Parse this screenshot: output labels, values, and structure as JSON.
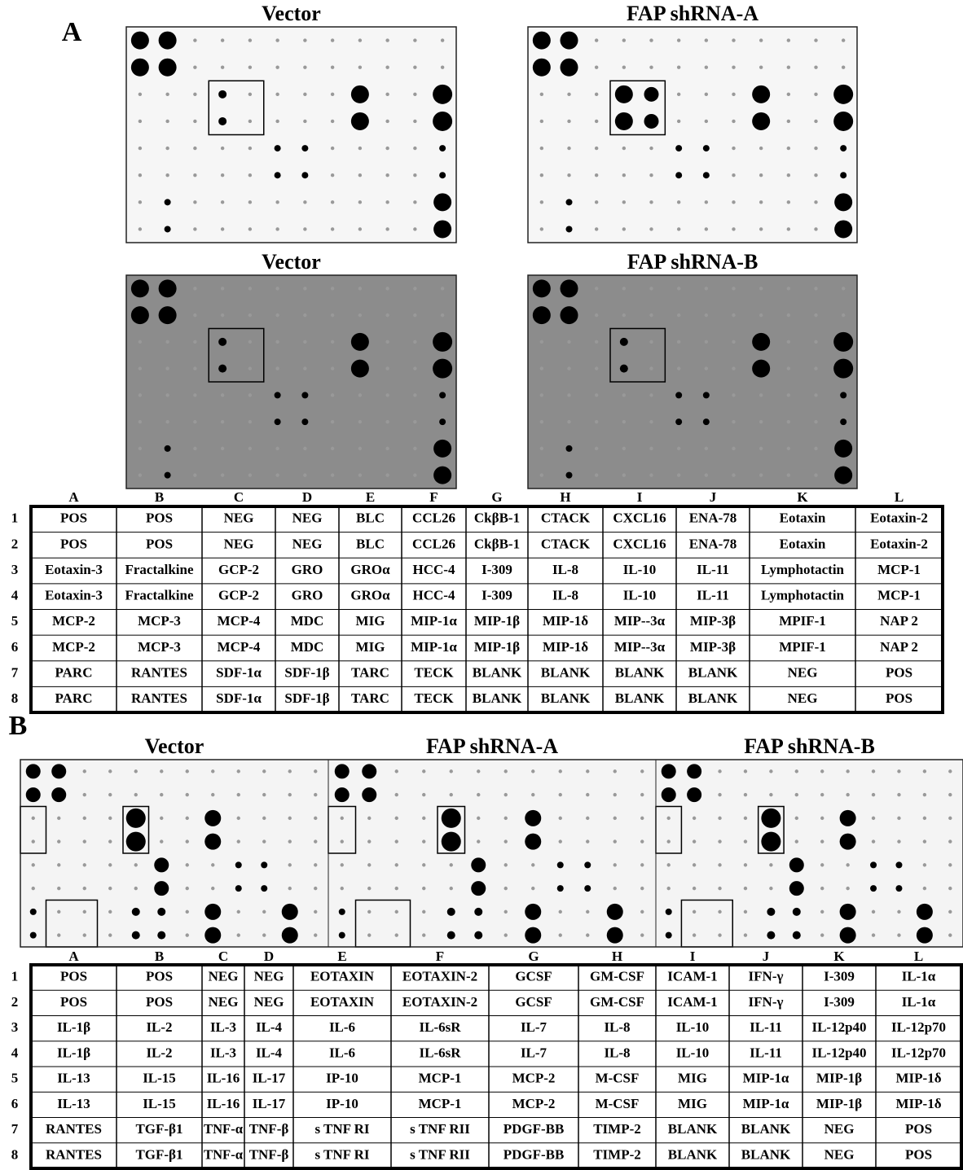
{
  "panel_a": {
    "label": "A",
    "blots": [
      "Vector",
      "FAP shRNA-A",
      "Vector",
      "FAP shRNA-B"
    ],
    "table": {
      "columns": [
        "A",
        "B",
        "C",
        "D",
        "E",
        "F",
        "G",
        "H",
        "I",
        "J",
        "K",
        "L"
      ],
      "row_numbers": [
        "1",
        "2",
        "3",
        "4",
        "5",
        "6",
        "7",
        "8"
      ],
      "rows": [
        [
          "POS",
          "POS",
          "NEG",
          "NEG",
          "BLC",
          "CCL26",
          "CkβB-1",
          "CTACK",
          "CXCL16",
          "ENA-78",
          "Eotaxin",
          "Eotaxin-2"
        ],
        [
          "POS",
          "POS",
          "NEG",
          "NEG",
          "BLC",
          "CCL26",
          "CkβB-1",
          "CTACK",
          "CXCL16",
          "ENA-78",
          "Eotaxin",
          "Eotaxin-2"
        ],
        [
          "Eotaxin-3",
          "Fractalkine",
          "GCP-2",
          "GRO",
          "GROα",
          "HCC-4",
          "I-309",
          "IL-8",
          "IL-10",
          "IL-11",
          "Lymphotactin",
          "MCP-1"
        ],
        [
          "Eotaxin-3",
          "Fractalkine",
          "GCP-2",
          "GRO",
          "GROα",
          "HCC-4",
          "I-309",
          "IL-8",
          "IL-10",
          "IL-11",
          "Lymphotactin",
          "MCP-1"
        ],
        [
          "MCP-2",
          "MCP-3",
          "MCP-4",
          "MDC",
          "MIG",
          "MIP-1α",
          "MIP-1β",
          "MIP-1δ",
          "MIP--3α",
          "MIP-3β",
          "MPIF-1",
          "NAP 2"
        ],
        [
          "MCP-2",
          "MCP-3",
          "MCP-4",
          "MDC",
          "MIG",
          "MIP-1α",
          "MIP-1β",
          "MIP-1δ",
          "MIP--3α",
          "MIP-3β",
          "MPIF-1",
          "NAP 2"
        ],
        [
          "PARC",
          "RANTES",
          "SDF-1α",
          "SDF-1β",
          "TARC",
          "TECK",
          "BLANK",
          "BLANK",
          "BLANK",
          "BLANK",
          "NEG",
          "POS"
        ],
        [
          "PARC",
          "RANTES",
          "SDF-1α",
          "SDF-1β",
          "TARC",
          "TECK",
          "BLANK",
          "BLANK",
          "BLANK",
          "BLANK",
          "NEG",
          "POS"
        ]
      ]
    }
  },
  "panel_b": {
    "label": "B",
    "blots": [
      "Vector",
      "FAP shRNA-A",
      "FAP shRNA-B"
    ],
    "table": {
      "columns": [
        "A",
        "B",
        "C",
        "D",
        "E",
        "F",
        "G",
        "H",
        "I",
        "J",
        "K",
        "L"
      ],
      "row_numbers": [
        "1",
        "2",
        "3",
        "4",
        "5",
        "6",
        "7",
        "8"
      ],
      "rows": [
        [
          "POS",
          "POS",
          "NEG",
          "NEG",
          "EOTAXIN",
          "EOTAXIN-2",
          "GCSF",
          "GM-CSF",
          "ICAM-1",
          "IFN-γ",
          "I-309",
          "IL-1α"
        ],
        [
          "POS",
          "POS",
          "NEG",
          "NEG",
          "EOTAXIN",
          "EOTAXIN-2",
          "GCSF",
          "GM-CSF",
          "ICAM-1",
          "IFN-γ",
          "I-309",
          "IL-1α"
        ],
        [
          "IL-1β",
          "IL-2",
          "IL-3",
          "IL-4",
          "IL-6",
          "IL-6sR",
          "IL-7",
          "IL-8",
          "IL-10",
          "IL-11",
          "IL-12p40",
          "IL-12p70"
        ],
        [
          "IL-1β",
          "IL-2",
          "IL-3",
          "IL-4",
          "IL-6",
          "IL-6sR",
          "IL-7",
          "IL-8",
          "IL-10",
          "IL-11",
          "IL-12p40",
          "IL-12p70"
        ],
        [
          "IL-13",
          "IL-15",
          "IL-16",
          "IL-17",
          "IP-10",
          "MCP-1",
          "MCP-2",
          "M-CSF",
          "MIG",
          "MIP-1α",
          "MIP-1β",
          "MIP-1δ"
        ],
        [
          "IL-13",
          "IL-15",
          "IL-16",
          "IL-17",
          "IP-10",
          "MCP-1",
          "MCP-2",
          "M-CSF",
          "MIG",
          "MIP-1α",
          "MIP-1β",
          "MIP-1δ"
        ],
        [
          "RANTES",
          "TGF-β1",
          "TNF-α",
          "TNF-β",
          "s TNF RI",
          "s TNF RII",
          "PDGF-BB",
          "TIMP-2",
          "BLANK",
          "BLANK",
          "NEG",
          "POS"
        ],
        [
          "RANTES",
          "TGF-β1",
          "TNF-α",
          "TNF-β",
          "s TNF RI",
          "s TNF RII",
          "PDGF-BB",
          "TIMP-2",
          "BLANK",
          "BLANK",
          "NEG",
          "POS"
        ]
      ]
    }
  }
}
